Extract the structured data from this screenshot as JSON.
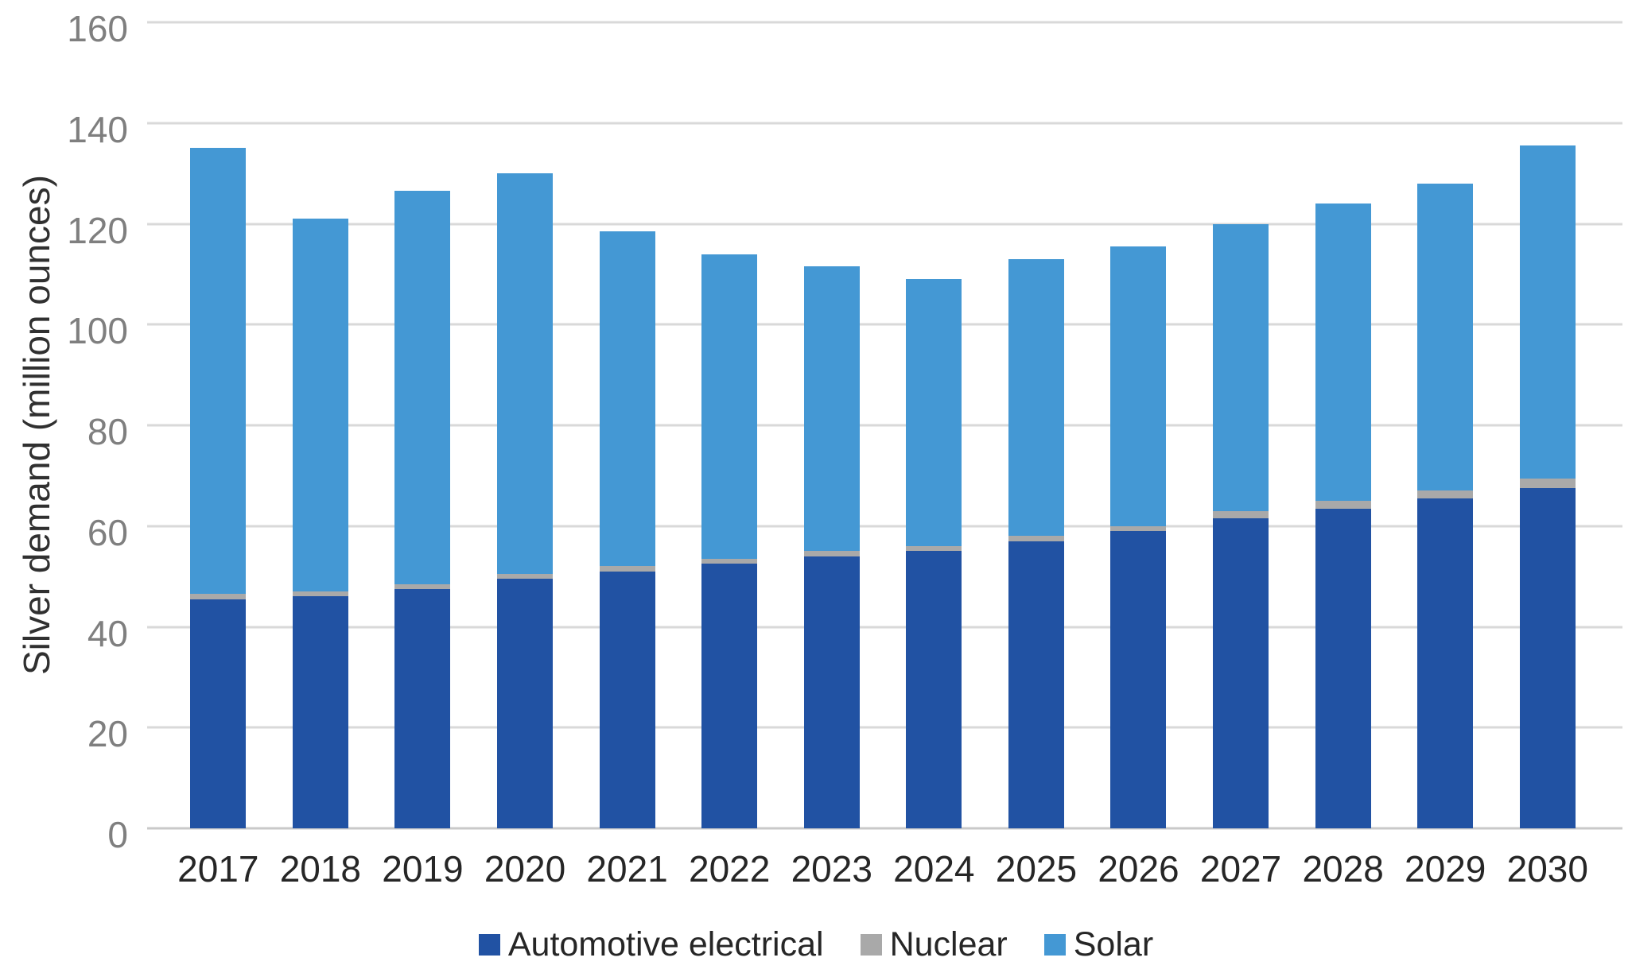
{
  "figure": {
    "background": "#FFFFFF"
  },
  "style": {
    "grid_color": "#D9D9D9",
    "baseline_color": "#C9C9C9",
    "tick_label_color": "#7F7F7F",
    "label_color": "#262626"
  },
  "chart_data": {
    "type": "bar",
    "stacked": true,
    "title": "",
    "xlabel": "",
    "ylabel": "Silver demand (million ounces)",
    "categories": [
      "2017",
      "2018",
      "2019",
      "2020",
      "2021",
      "2022",
      "2023",
      "2024",
      "2025",
      "2026",
      "2027",
      "2028",
      "2029",
      "2030"
    ],
    "series": [
      {
        "name": "Automotive electrical",
        "color": "#2152A3",
        "values": [
          45.5,
          46,
          47.5,
          49.5,
          51,
          52.5,
          54,
          55,
          57,
          59,
          61.5,
          63.5,
          65.5,
          67.5
        ]
      },
      {
        "name": "Nuclear",
        "color": "#A9A9A9",
        "values": [
          1,
          1,
          1,
          1,
          1,
          1,
          1,
          1,
          1,
          1,
          1.5,
          1.5,
          1.5,
          2
        ]
      },
      {
        "name": "Solar",
        "color": "#4498D4",
        "values": [
          88.5,
          74,
          78,
          79.5,
          66.5,
          60.5,
          56.5,
          53,
          55,
          55.5,
          57,
          59,
          61,
          66
        ]
      }
    ],
    "totals": [
      135,
      121,
      126.5,
      130,
      118.5,
      114,
      111.5,
      109,
      113,
      115.5,
      120,
      124,
      128,
      135.5
    ],
    "ylim": [
      0,
      160
    ],
    "yticks": [
      0,
      20,
      40,
      60,
      80,
      100,
      120,
      140,
      160
    ],
    "grid": true,
    "legend_position": "bottom"
  }
}
